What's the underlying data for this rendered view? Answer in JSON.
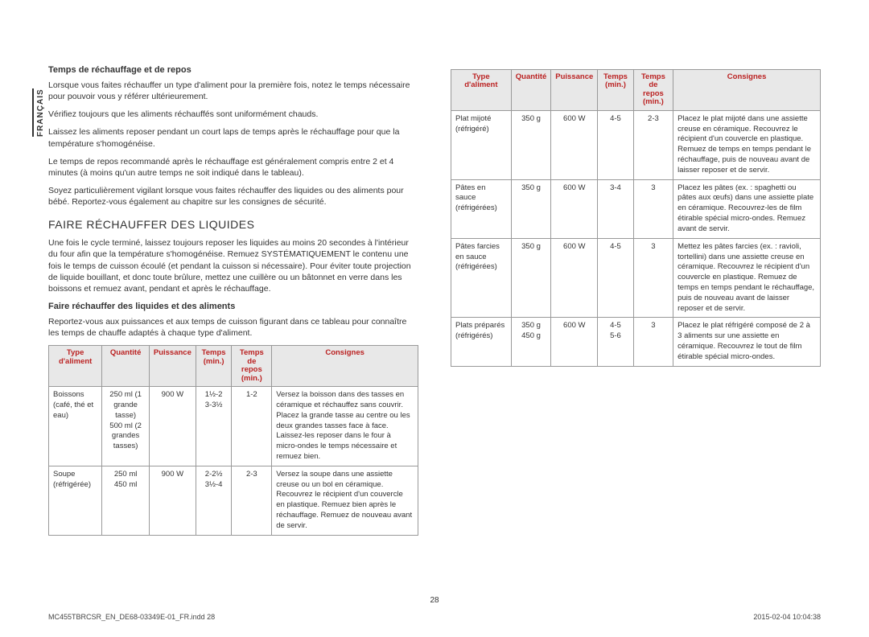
{
  "sideTab": "FRANÇAIS",
  "pageNumber": "28",
  "footerLeft": "MC455TBRCSR_EN_DE68-03349E-01_FR.indd   28",
  "footerRight": "2015-02-04   10:04:38",
  "left": {
    "h1": "Temps de réchauffage et de repos",
    "p1": "Lorsque vous faites réchauffer un type d'aliment pour la première fois, notez le temps nécessaire pour pouvoir vous y référer ultérieurement.",
    "p2": "Vérifiez toujours que les aliments réchauffés sont uniformément chauds.",
    "p3": "Laissez les aliments reposer pendant un court laps de temps après le réchauffage pour que la température s'homogénéise.",
    "p4": "Le temps de repos recommandé après le réchauffage est généralement compris entre 2 et 4 minutes (à moins qu'un autre temps ne soit indiqué dans le tableau).",
    "p5": "Soyez particulièrement vigilant lorsque vous faites réchauffer des liquides ou des aliments pour bébé. Reportez-vous également au chapitre sur les consignes de sécurité.",
    "section": "FAIRE RÉCHAUFFER DES LIQUIDES",
    "p6": "Une fois le cycle terminé, laissez toujours reposer les liquides au moins 20 secondes à l'intérieur du four afin que la température s'homogénéise. Remuez SYSTÉMATIQUEMENT le contenu une fois le temps de cuisson écoulé (et pendant la cuisson si nécessaire). Pour éviter toute projection de liquide bouillant, et donc toute brûlure, mettez une cuillère ou un bâtonnet en verre dans les boissons et remuez avant, pendant et après le réchauffage.",
    "h2": "Faire réchauffer des liquides et des aliments",
    "p7": "Reportez-vous aux puissances et aux temps de cuisson figurant dans ce tableau pour connaître les temps de chauffe adaptés à chaque type d'aliment."
  },
  "headers": {
    "c1": "Type d'aliment",
    "c2": "Quantité",
    "c3": "Puissance",
    "c4": "Temps (min.)",
    "c5": "Temps de repos (min.)",
    "c6": "Consignes"
  },
  "table1": [
    {
      "type": "Boissons (café, thé et eau)",
      "qty": "250 ml (1 grande tasse)\n500 ml (2 grandes tasses)",
      "pwr": "900 W",
      "time": "1½-2\n3-3½",
      "rest": "1-2",
      "notes": "Versez la boisson dans des tasses en céramique et réchauffez sans couvrir. Placez la grande tasse au centre ou les deux grandes tasses face à face. Laissez-les reposer dans le four à micro-ondes le temps nécessaire et remuez bien."
    },
    {
      "type": "Soupe (réfrigérée)",
      "qty": "250 ml\n450 ml",
      "pwr": "900 W",
      "time": "2-2½\n3½-4",
      "rest": "2-3",
      "notes": "Versez la soupe dans une assiette creuse ou un bol en céramique. Recouvrez le récipient d'un couvercle en plastique. Remuez bien après le réchauffage. Remuez de nouveau avant de servir."
    }
  ],
  "table2": [
    {
      "type": "Plat mijoté (réfrigéré)",
      "qty": "350 g",
      "pwr": "600 W",
      "time": "4-5",
      "rest": "2-3",
      "notes": "Placez le plat mijoté dans une assiette creuse en céramique. Recouvrez le récipient d'un couvercle en plastique. Remuez de temps en temps pendant le réchauffage, puis de nouveau avant de laisser reposer et de servir."
    },
    {
      "type": "Pâtes en sauce (réfrigérées)",
      "qty": "350 g",
      "pwr": "600 W",
      "time": "3-4",
      "rest": "3",
      "notes": "Placez les pâtes (ex. : spaghetti ou pâtes aux œufs) dans une assiette plate en céramique. Recouvrez-les de film étirable spécial micro-ondes. Remuez avant de servir."
    },
    {
      "type": "Pâtes farcies en sauce (réfrigérées)",
      "qty": "350 g",
      "pwr": "600 W",
      "time": "4-5",
      "rest": "3",
      "notes": "Mettez les pâtes farcies (ex. : ravioli, tortellini) dans une assiette creuse en céramique. Recouvrez le récipient d'un couvercle en plastique. Remuez de temps en temps pendant le réchauffage, puis de nouveau avant de laisser reposer et de servir."
    },
    {
      "type": "Plats préparés (réfrigérés)",
      "qty": "350 g\n450 g",
      "pwr": "600 W",
      "time": "4-5\n5-6",
      "rest": "3",
      "notes": "Placez le plat réfrigéré composé de 2 à 3 aliments sur une assiette en céramique. Recouvrez le tout de film étirable spécial micro-ondes."
    }
  ]
}
